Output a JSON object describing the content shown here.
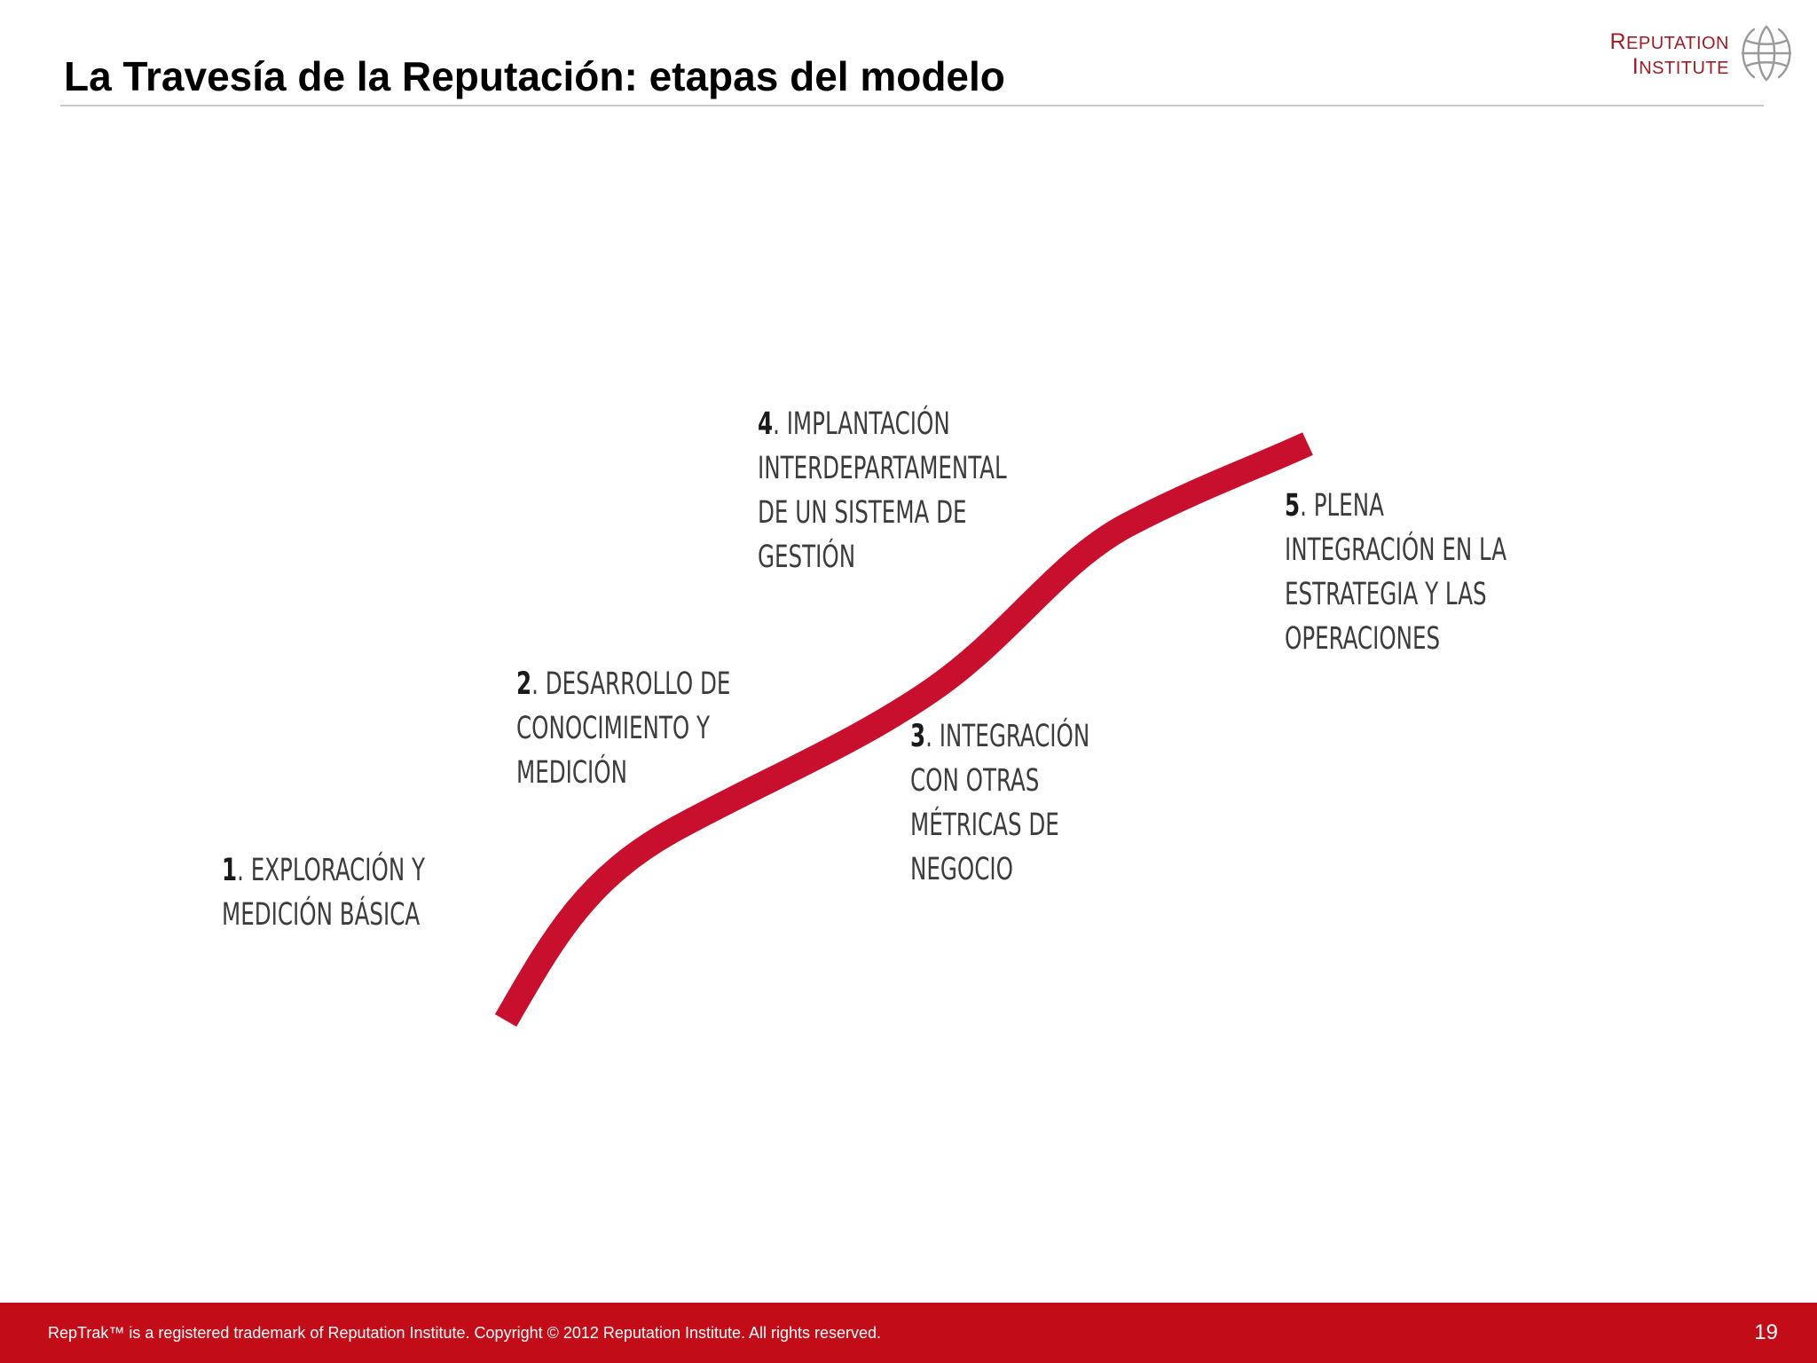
{
  "slide": {
    "title": "La Travesía de la Reputación: etapas del modelo",
    "page_number": "19"
  },
  "logo": {
    "line1": "Reputation",
    "line2": "Institute",
    "color": "#a01c25"
  },
  "journey": {
    "path_color": "#c8102e",
    "stages": [
      {
        "number": "1",
        "lines": [
          ". EXPLORACIÓN Y",
          "MEDICIÓN BÁSICA"
        ]
      },
      {
        "number": "2",
        "lines": [
          ". DESARROLLO DE",
          "CONOCIMIENTO Y",
          "MEDICIÓN"
        ]
      },
      {
        "number": "3",
        "lines": [
          ". INTEGRACIÓN",
          "CON OTRAS",
          "MÉTRICAS DE",
          "NEGOCIO"
        ]
      },
      {
        "number": "4",
        "lines": [
          ". IMPLANTACIÓN",
          "INTERDEPARTAMENTAL",
          "DE UN SISTEMA DE",
          "GESTIÓN"
        ]
      },
      {
        "number": "5",
        "lines": [
          ". PLENA",
          "INTEGRACIÓN EN LA",
          "ESTRATEGIA Y LAS",
          "OPERACIONES"
        ]
      }
    ]
  },
  "footer": {
    "text": "RepTrak™ is a registered trademark of Reputation Institute. Copyright © 2012 Reputation Institute. All rights reserved.",
    "background_color": "#c20c17"
  }
}
